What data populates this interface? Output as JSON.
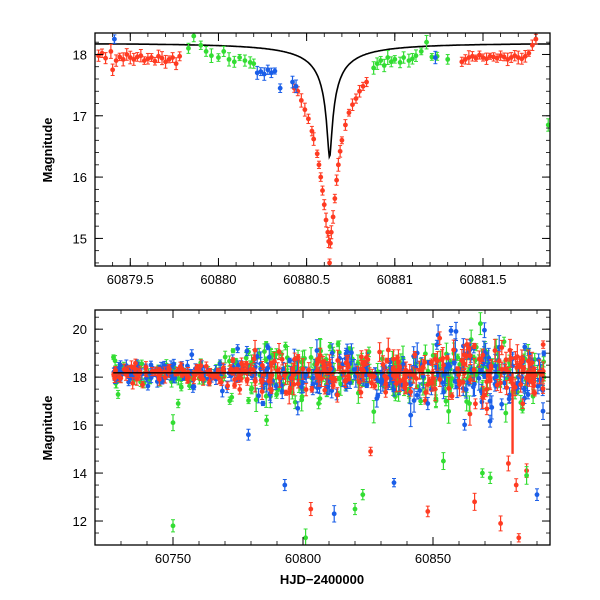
{
  "chart_data": [
    {
      "type": "scatter",
      "ylabel": "Magnitude",
      "xlabel": "",
      "xlim": [
        60879.3,
        60881.88
      ],
      "ylim": [
        18.35,
        14.55
      ],
      "y_inverted": true,
      "xticks_major": [
        60879.5,
        60880,
        60880.5,
        60881,
        60881.5
      ],
      "xtick_labels": [
        "60879.5",
        "60880",
        "60880.5",
        "60881",
        "60881.5"
      ],
      "yticks_major": [
        15,
        16,
        17,
        18
      ],
      "ytick_labels": [
        "15",
        "16",
        "17",
        "18"
      ],
      "colors": {
        "red": "#ff3b22",
        "green": "#33dd33",
        "blue": "#1a5ee8",
        "model": "#000000"
      },
      "model_curve": {
        "t0": 60880.63,
        "u0": 0.012,
        "tE": 0.85,
        "baseline": 18.18,
        "blend_fraction": 0.055
      },
      "series": [
        {
          "color": "red",
          "points": [
            [
              60879.32,
              17.98
            ],
            [
              60879.34,
              18.02
            ],
            [
              60879.36,
              17.94
            ],
            [
              60879.39,
              18.05
            ],
            [
              60879.4,
              17.75
            ],
            [
              60879.42,
              17.9
            ],
            [
              60879.44,
              17.96
            ],
            [
              60879.46,
              17.92
            ],
            [
              60879.48,
              18.0
            ],
            [
              60879.5,
              17.95
            ],
            [
              60879.52,
              17.92
            ],
            [
              60879.54,
              17.96
            ],
            [
              60879.56,
              17.98
            ],
            [
              60879.58,
              17.9
            ],
            [
              60879.6,
              17.93
            ],
            [
              60879.62,
              17.95
            ],
            [
              60879.64,
              17.89
            ],
            [
              60879.66,
              17.97
            ],
            [
              60879.68,
              17.94
            ],
            [
              60879.7,
              17.88
            ],
            [
              60879.72,
              17.92
            ],
            [
              60879.74,
              17.95
            ],
            [
              60879.76,
              17.85
            ],
            [
              60879.78,
              17.97
            ],
            [
              60880.43,
              17.45
            ],
            [
              60880.45,
              17.4
            ],
            [
              60880.47,
              17.25
            ],
            [
              60880.49,
              17.1
            ],
            [
              60880.51,
              16.95
            ],
            [
              60880.53,
              16.75
            ],
            [
              60880.54,
              16.62
            ],
            [
              60880.56,
              16.38
            ],
            [
              60880.57,
              16.2
            ],
            [
              60880.58,
              16.0
            ],
            [
              60880.59,
              15.78
            ],
            [
              60880.6,
              15.55
            ],
            [
              60880.61,
              15.3
            ],
            [
              60880.62,
              15.1
            ],
            [
              60880.625,
              14.95
            ],
            [
              60880.63,
              14.6
            ],
            [
              60880.635,
              14.92
            ],
            [
              60880.64,
              15.1
            ],
            [
              60880.65,
              15.35
            ],
            [
              60880.66,
              15.65
            ],
            [
              60880.67,
              15.95
            ],
            [
              60880.68,
              16.2
            ],
            [
              60880.69,
              16.42
            ],
            [
              60880.7,
              16.6
            ],
            [
              60880.72,
              16.85
            ],
            [
              60880.74,
              17.05
            ],
            [
              60880.76,
              17.18
            ],
            [
              60880.78,
              17.28
            ],
            [
              60880.8,
              17.4
            ],
            [
              60880.82,
              17.48
            ],
            [
              60880.84,
              17.55
            ],
            [
              60881.38,
              17.88
            ],
            [
              60881.4,
              17.92
            ],
            [
              60881.42,
              17.95
            ],
            [
              60881.44,
              17.97
            ],
            [
              60881.46,
              17.94
            ],
            [
              60881.48,
              17.99
            ],
            [
              60881.5,
              17.95
            ],
            [
              60881.52,
              17.93
            ],
            [
              60881.54,
              17.97
            ],
            [
              60881.56,
              17.96
            ],
            [
              60881.58,
              17.94
            ],
            [
              60881.6,
              17.98
            ],
            [
              60881.62,
              17.96
            ],
            [
              60881.64,
              17.92
            ],
            [
              60881.66,
              17.95
            ],
            [
              60881.68,
              17.98
            ],
            [
              60881.7,
              17.95
            ],
            [
              60881.72,
              17.93
            ],
            [
              60881.74,
              17.97
            ],
            [
              60881.76,
              18.02
            ],
            [
              60881.78,
              18.15
            ],
            [
              60881.8,
              18.25
            ]
          ]
        },
        {
          "color": "green",
          "points": [
            [
              60879.83,
              18.1
            ],
            [
              60879.86,
              18.3
            ],
            [
              60879.9,
              18.15
            ],
            [
              60879.93,
              18.05
            ],
            [
              60879.96,
              17.98
            ],
            [
              60880.0,
              17.95
            ],
            [
              60880.03,
              18.05
            ],
            [
              60880.06,
              17.92
            ],
            [
              60880.09,
              17.88
            ],
            [
              60880.12,
              17.95
            ],
            [
              60880.15,
              17.9
            ],
            [
              60880.18,
              17.87
            ],
            [
              60880.2,
              17.85
            ],
            [
              60880.88,
              17.78
            ],
            [
              60880.9,
              17.85
            ],
            [
              60880.92,
              17.9
            ],
            [
              60880.94,
              17.82
            ],
            [
              60880.96,
              17.95
            ],
            [
              60880.98,
              17.88
            ],
            [
              60881.0,
              17.92
            ],
            [
              60881.03,
              17.87
            ],
            [
              60881.05,
              17.95
            ],
            [
              60881.08,
              17.9
            ],
            [
              60881.1,
              17.93
            ],
            [
              60881.12,
              17.98
            ],
            [
              60881.15,
              18.05
            ],
            [
              60881.18,
              18.2
            ],
            [
              60881.21,
              17.96
            ],
            [
              60881.24,
              17.97
            ],
            [
              60881.3,
              17.92
            ],
            [
              60881.87,
              16.85
            ]
          ]
        },
        {
          "color": "blue",
          "points": [
            [
              60879.41,
              18.25
            ],
            [
              60880.22,
              17.7
            ],
            [
              60880.24,
              17.72
            ],
            [
              60880.26,
              17.68
            ],
            [
              60880.28,
              17.75
            ],
            [
              60880.3,
              17.7
            ],
            [
              60880.32,
              17.73
            ],
            [
              60880.35,
              17.45
            ],
            [
              60880.42,
              17.55
            ],
            [
              60880.44,
              17.48
            ],
            [
              60881.23,
              17.95
            ]
          ]
        }
      ]
    },
    {
      "type": "scatter",
      "ylabel": "Magnitude",
      "xlabel": "HJD−2400000",
      "xlim": [
        60720,
        60895
      ],
      "ylim": [
        20.8,
        11.0
      ],
      "y_inverted": true,
      "xticks_major": [
        60750,
        60800,
        60850
      ],
      "xtick_labels": [
        "60750",
        "60800",
        "60850"
      ],
      "yticks_major": [
        12,
        14,
        16,
        18,
        20
      ],
      "ytick_labels": [
        "12",
        "14",
        "16",
        "18",
        "20"
      ],
      "baseline": 18.18,
      "dense_band": {
        "x_range": [
          60727,
          60893
        ],
        "center": 18.15,
        "points_per_series": 330
      },
      "outliers": [
        {
          "color": "green",
          "x": 60750,
          "y": 11.8
        },
        {
          "color": "green",
          "x": 60750,
          "y": 16.1
        },
        {
          "color": "green",
          "x": 60752,
          "y": 16.9
        },
        {
          "color": "blue",
          "x": 60779,
          "y": 15.6
        },
        {
          "color": "blue",
          "x": 60793,
          "y": 13.5
        },
        {
          "color": "green",
          "x": 60786,
          "y": 16.2
        },
        {
          "color": "green",
          "x": 60801,
          "y": 11.3
        },
        {
          "color": "red",
          "x": 60803,
          "y": 12.5
        },
        {
          "color": "blue",
          "x": 60798,
          "y": 16.7
        },
        {
          "color": "blue",
          "x": 60812,
          "y": 12.3
        },
        {
          "color": "green",
          "x": 60820,
          "y": 12.5
        },
        {
          "color": "green",
          "x": 60823,
          "y": 13.1
        },
        {
          "color": "red",
          "x": 60826,
          "y": 14.9
        },
        {
          "color": "green",
          "x": 60806,
          "y": 16.9
        },
        {
          "color": "blue",
          "x": 60835,
          "y": 13.6
        },
        {
          "color": "green",
          "x": 60854,
          "y": 14.5
        },
        {
          "color": "red",
          "x": 60848,
          "y": 12.4
        },
        {
          "color": "blue",
          "x": 60848,
          "y": 16.9
        },
        {
          "color": "green",
          "x": 60855,
          "y": 17.0
        },
        {
          "color": "red",
          "x": 60866,
          "y": 12.8
        },
        {
          "color": "green",
          "x": 60869,
          "y": 14.0
        },
        {
          "color": "green",
          "x": 60872,
          "y": 13.8
        },
        {
          "color": "red",
          "x": 60876,
          "y": 11.9
        },
        {
          "color": "red",
          "x": 60883,
          "y": 11.3
        },
        {
          "color": "red",
          "x": 60882,
          "y": 13.5
        },
        {
          "color": "red",
          "x": 60879,
          "y": 14.4
        },
        {
          "color": "red",
          "x": 60886,
          "y": 14.1
        },
        {
          "color": "green",
          "x": 60886,
          "y": 13.9
        },
        {
          "color": "blue",
          "x": 60890,
          "y": 13.1
        },
        {
          "color": "green",
          "x": 60864,
          "y": 16.9
        },
        {
          "color": "green",
          "x": 60878,
          "y": 16.5
        }
      ],
      "event_spike": {
        "color": "red",
        "x": 60880.6,
        "peak": 14.8
      }
    }
  ]
}
